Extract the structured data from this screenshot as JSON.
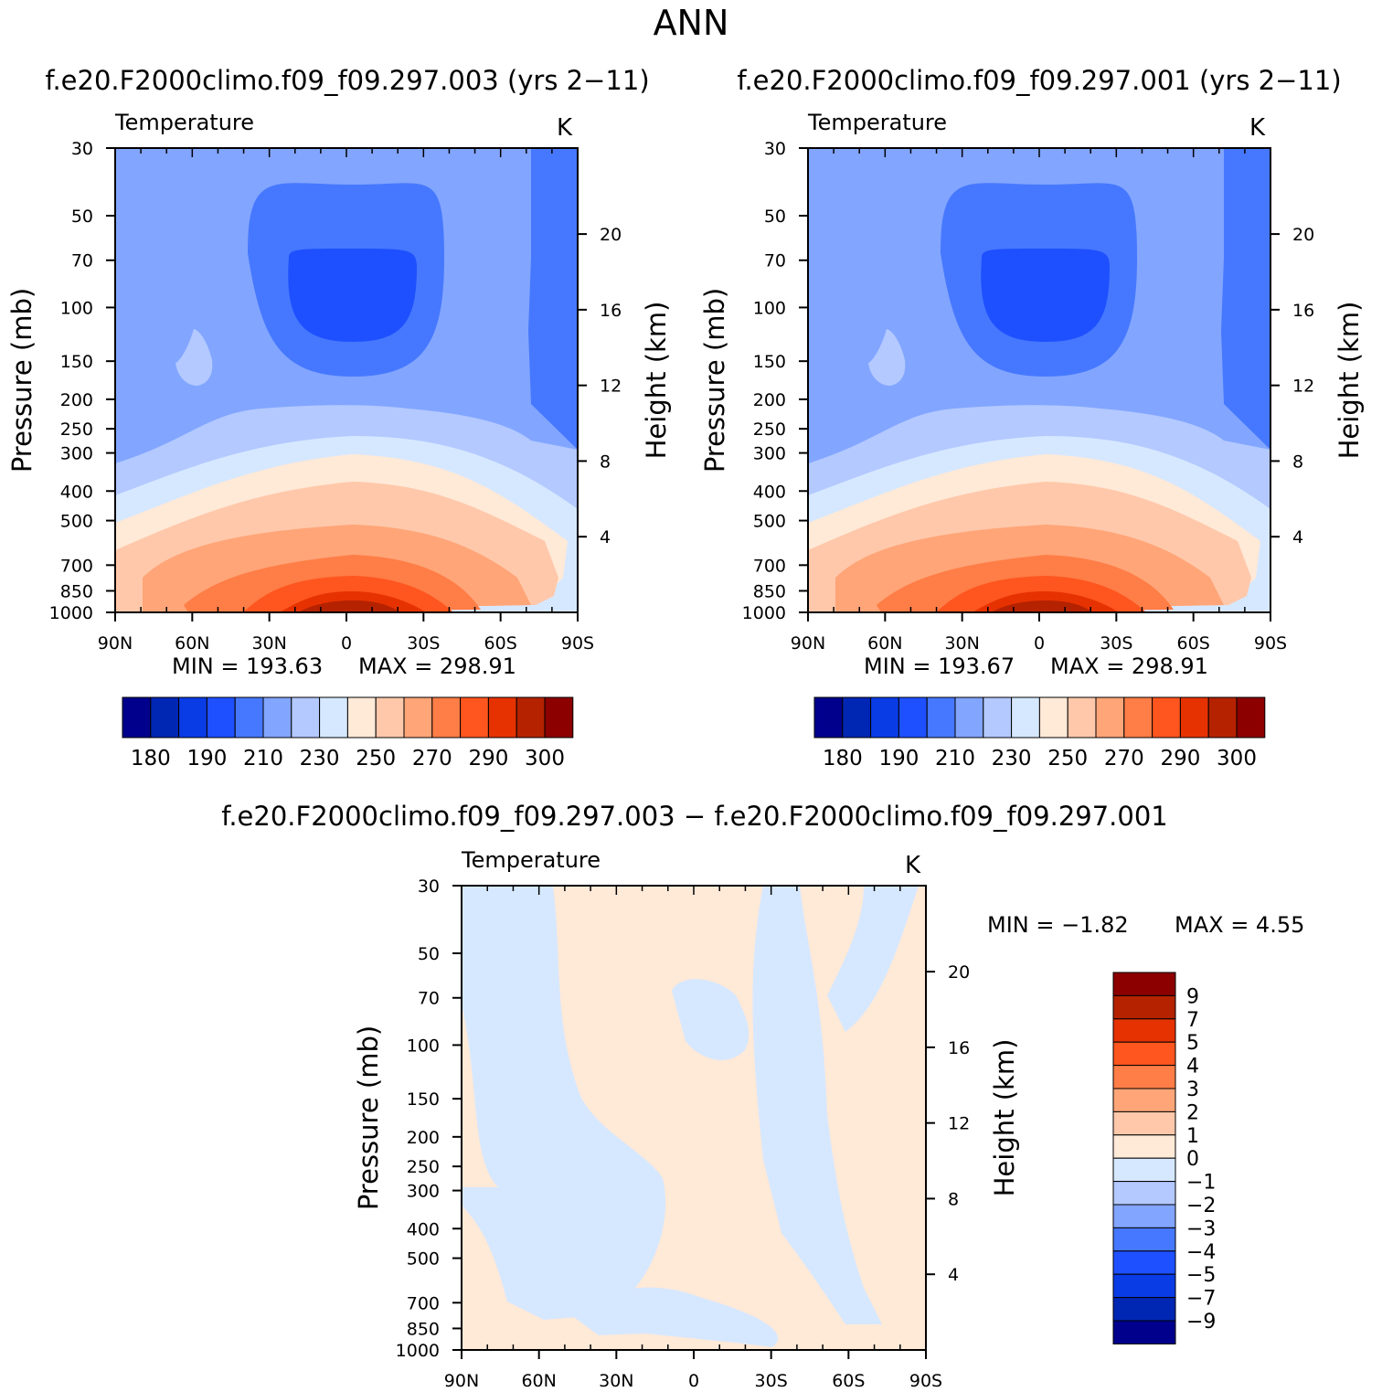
{
  "page_title": "ANN",
  "colors": {
    "temp_palette": [
      "#00008c",
      "#0026b4",
      "#0a3ce6",
      "#1e50ff",
      "#4678ff",
      "#82a5ff",
      "#b3c9ff",
      "#d6e8ff",
      "#ffe9d7",
      "#ffc8aa",
      "#ffa578",
      "#ff7d46",
      "#ff551e",
      "#e63200",
      "#b42200",
      "#8c0000"
    ]
  },
  "chart_data": [
    {
      "type": "heatmap",
      "title": "f.e20.F2000climo.f09_f09.297.003 (yrs 2−11)",
      "variable": "Temperature",
      "units": "K",
      "xlabel": "",
      "ylabel": "Pressure (mb)",
      "ylabel_right": "Height (km)",
      "x_ticks": [
        "90N",
        "60N",
        "30N",
        "0",
        "30S",
        "60S",
        "90S"
      ],
      "y_ticks": [
        30,
        50,
        70,
        100,
        150,
        200,
        250,
        300,
        400,
        500,
        700,
        850,
        1000
      ],
      "y_scale": "log",
      "ylim": [
        30,
        1000
      ],
      "right_ticks": [
        20,
        16,
        12,
        8,
        4
      ],
      "min_label": "MIN = 193.63",
      "max_label": "MAX = 298.91",
      "colorbar_labels": [
        "180",
        "190",
        "210",
        "230",
        "250",
        "270",
        "290",
        "300"
      ],
      "colorbar_levels": [
        180,
        190,
        200,
        210,
        220,
        230,
        240,
        250,
        260,
        270,
        280,
        290,
        295,
        300
      ],
      "colorbar_orientation": "horizontal"
    },
    {
      "type": "heatmap",
      "title": "f.e20.F2000climo.f09_f09.297.001 (yrs 2−11)",
      "variable": "Temperature",
      "units": "K",
      "xlabel": "",
      "ylabel": "Pressure (mb)",
      "ylabel_right": "Height (km)",
      "x_ticks": [
        "90N",
        "60N",
        "30N",
        "0",
        "30S",
        "60S",
        "90S"
      ],
      "y_ticks": [
        30,
        50,
        70,
        100,
        150,
        200,
        250,
        300,
        400,
        500,
        700,
        850,
        1000
      ],
      "y_scale": "log",
      "ylim": [
        30,
        1000
      ],
      "right_ticks": [
        20,
        16,
        12,
        8,
        4
      ],
      "min_label": "MIN = 193.67",
      "max_label": "MAX = 298.91",
      "colorbar_labels": [
        "180",
        "190",
        "210",
        "230",
        "250",
        "270",
        "290",
        "300"
      ],
      "colorbar_levels": [
        180,
        190,
        200,
        210,
        220,
        230,
        240,
        250,
        260,
        270,
        280,
        290,
        295,
        300
      ],
      "colorbar_orientation": "horizontal"
    },
    {
      "type": "heatmap",
      "title": "f.e20.F2000climo.f09_f09.297.003 − f.e20.F2000climo.f09_f09.297.001",
      "variable": "Temperature",
      "units": "K",
      "xlabel": "",
      "ylabel": "Pressure (mb)",
      "ylabel_right": "Height (km)",
      "x_ticks": [
        "90N",
        "60N",
        "30N",
        "0",
        "30S",
        "60S",
        "90S"
      ],
      "y_ticks": [
        30,
        50,
        70,
        100,
        150,
        200,
        250,
        300,
        400,
        500,
        700,
        850,
        1000
      ],
      "y_scale": "log",
      "ylim": [
        30,
        1000
      ],
      "right_ticks": [
        20,
        16,
        12,
        8,
        4
      ],
      "min_label": "MIN =  −1.82",
      "max_label": "MAX =   4.55",
      "colorbar_labels": [
        "9",
        "7",
        "5",
        "4",
        "3",
        "2",
        "1",
        "0",
        "−1",
        "−2",
        "−3",
        "−4",
        "−5",
        "−7",
        "−9"
      ],
      "colorbar_orientation": "vertical"
    }
  ]
}
